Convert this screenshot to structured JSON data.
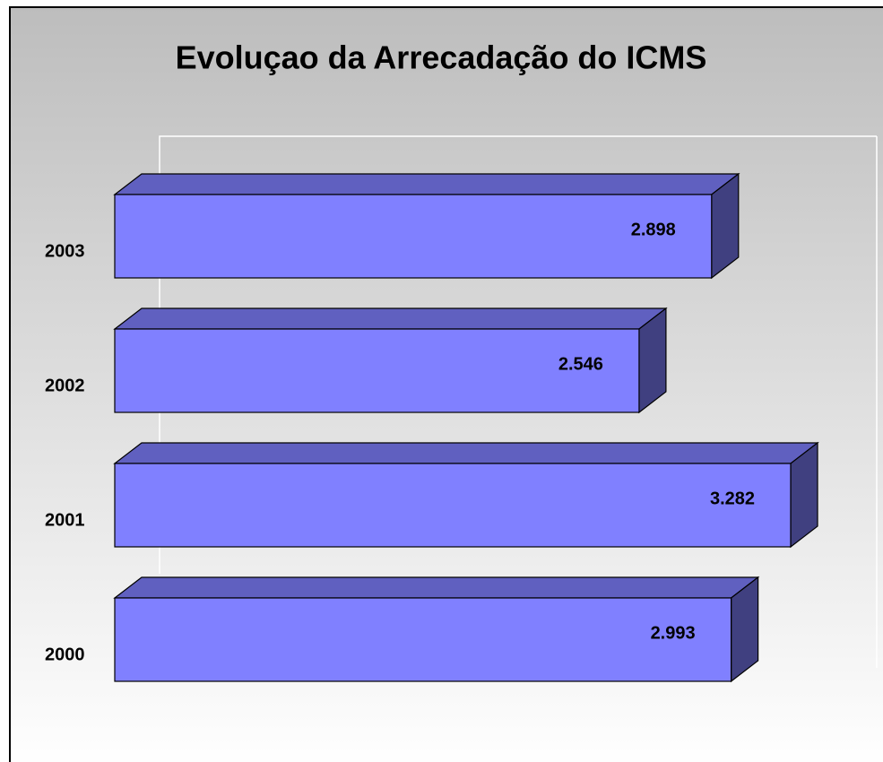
{
  "chart_data": {
    "type": "bar3d",
    "title": "Evoluçao da Arrecadação do ICMS",
    "categories": [
      "2003",
      "2002",
      "2001",
      "2000"
    ],
    "values": [
      2898,
      2546,
      3282,
      2993
    ],
    "value_labels": [
      "2.898",
      "2.546",
      "3.282",
      "2.993"
    ],
    "color": "#8080ff"
  }
}
